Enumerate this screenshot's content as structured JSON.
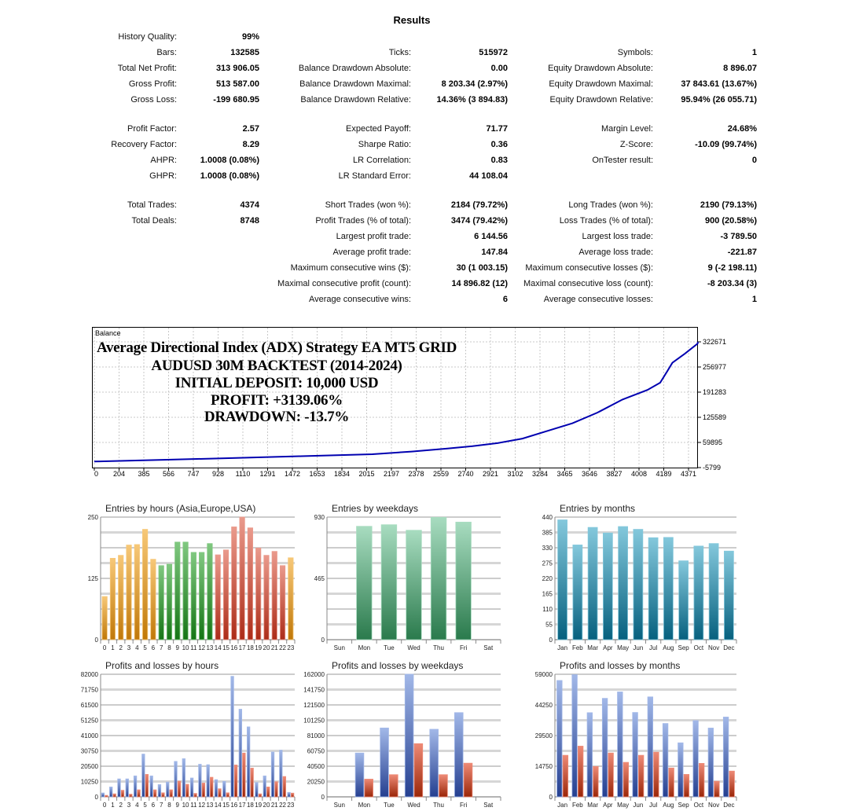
{
  "report": {
    "title": "Results",
    "sections": [
      [
        [
          [
            "History Quality:",
            "99%"
          ],
          null,
          null
        ],
        [
          [
            "Bars:",
            "132585"
          ],
          [
            "Ticks:",
            "515972"
          ],
          [
            "Symbols:",
            "1"
          ]
        ],
        [
          [
            "Total Net Profit:",
            "313 906.05"
          ],
          [
            "Balance Drawdown Absolute:",
            "0.00"
          ],
          [
            "Equity Drawdown Absolute:",
            "8 896.07"
          ]
        ],
        [
          [
            "Gross Profit:",
            "513 587.00"
          ],
          [
            "Balance Drawdown Maximal:",
            "8 203.34 (2.97%)"
          ],
          [
            "Equity Drawdown Maximal:",
            "37 843.61 (13.67%)"
          ]
        ],
        [
          [
            "Gross Loss:",
            "-199 680.95"
          ],
          [
            "Balance Drawdown Relative:",
            "14.36% (3 894.83)"
          ],
          [
            "Equity Drawdown Relative:",
            "95.94% (26 055.71)"
          ]
        ]
      ],
      [
        [
          [
            "Profit Factor:",
            "2.57"
          ],
          [
            "Expected Payoff:",
            "71.77"
          ],
          [
            "Margin Level:",
            "24.68%"
          ]
        ],
        [
          [
            "Recovery Factor:",
            "8.29"
          ],
          [
            "Sharpe Ratio:",
            "0.36"
          ],
          [
            "Z-Score:",
            "-10.09 (99.74%)"
          ]
        ],
        [
          [
            "AHPR:",
            "1.0008 (0.08%)"
          ],
          [
            "LR Correlation:",
            "0.83"
          ],
          [
            "OnTester result:",
            "0"
          ]
        ],
        [
          [
            "GHPR:",
            "1.0008 (0.08%)"
          ],
          [
            "LR Standard Error:",
            "44 108.04"
          ],
          null
        ]
      ],
      [
        [
          [
            "Total Trades:",
            "4374"
          ],
          [
            "Short Trades (won %):",
            "2184 (79.72%)"
          ],
          [
            "Long Trades (won %):",
            "2190 (79.13%)"
          ]
        ],
        [
          [
            "Total Deals:",
            "8748"
          ],
          [
            "Profit Trades (% of total):",
            "3474 (79.42%)"
          ],
          [
            "Loss Trades (% of total):",
            "900 (20.58%)"
          ]
        ],
        [
          null,
          [
            "Largest profit trade:",
            "6 144.56"
          ],
          [
            "Largest loss trade:",
            "-3 789.50"
          ]
        ],
        [
          null,
          [
            "Average profit trade:",
            "147.84"
          ],
          [
            "Average loss trade:",
            "-221.87"
          ]
        ],
        [
          null,
          [
            "Maximum consecutive wins ($):",
            "30 (1 003.15)"
          ],
          [
            "Maximum consecutive losses ($):",
            "9 (-2 198.11)"
          ]
        ],
        [
          null,
          [
            "Maximal consecutive profit (count):",
            "14 896.82 (12)"
          ],
          [
            "Maximal consecutive loss (count):",
            "-8 203.34 (3)"
          ]
        ],
        [
          null,
          [
            "Average consecutive wins:",
            "6"
          ],
          [
            "Average consecutive losses:",
            "1"
          ]
        ]
      ]
    ]
  },
  "overlay": {
    "line1": "Average Directional Index (ADX) Strategy EA MT5 GRID",
    "line2": "AUDUSD 30M BACKTEST (2014-2024)",
    "line3": "INITIAL DEPOSIT: 10,000 USD",
    "line4": "PROFIT: +3139.06%",
    "line5": "DRAWDOWN: -13.7%"
  },
  "palette": {
    "orange": [
      "#f7c878",
      "#c07808"
    ],
    "green": [
      "#80c880",
      "#157515"
    ],
    "red": [
      "#ea9a8c",
      "#ac2c18"
    ],
    "wgreen": [
      "#a8dcc0",
      "#2a7a4c"
    ],
    "teal": [
      "#84c8dc",
      "#06607e"
    ],
    "blue": [
      "#a2b8e8",
      "#243f90"
    ],
    "loss": [
      "#ee8a76",
      "#9a2608"
    ],
    "line": "#0000b0"
  },
  "chart_data": [
    {
      "type": "line",
      "title": "Balance",
      "x_ticks": [
        "0",
        "204",
        "385",
        "566",
        "747",
        "928",
        "1110",
        "1291",
        "1472",
        "1653",
        "1834",
        "2015",
        "2197",
        "2378",
        "2559",
        "2740",
        "2921",
        "3102",
        "3284",
        "3465",
        "3646",
        "3827",
        "4008",
        "4189",
        "4371"
      ],
      "y_ticks": [
        "322671",
        "256977",
        "191283",
        "125589",
        "59895",
        "-5799"
      ],
      "ylim": [
        -5799,
        322671
      ],
      "xlim": [
        0,
        4374
      ],
      "x": [
        0,
        500,
        1000,
        1500,
        2015,
        2300,
        2559,
        2740,
        2921,
        3102,
        3284,
        3465,
        3646,
        3827,
        4008,
        4100,
        4150,
        4189,
        4280,
        4371,
        4374
      ],
      "y": [
        10000,
        14500,
        19000,
        24000,
        29000,
        36000,
        44000,
        50000,
        58000,
        70000,
        90000,
        110000,
        138000,
        172000,
        197000,
        216000,
        245000,
        268000,
        292000,
        318000,
        322671
      ]
    },
    {
      "type": "bar",
      "title": "Entries by hours (Asia,Europe,USA)",
      "categories": [
        "0",
        "1",
        "2",
        "3",
        "4",
        "5",
        "6",
        "7",
        "8",
        "9",
        "10",
        "11",
        "12",
        "13",
        "14",
        "15",
        "16",
        "17",
        "18",
        "19",
        "20",
        "21",
        "22",
        "23"
      ],
      "ylim": [
        0,
        250
      ],
      "y_ticks": [
        0,
        125,
        250
      ],
      "series": [
        {
          "name": "Entries",
          "values": [
            88,
            166,
            172,
            193,
            194,
            225,
            164,
            151,
            154,
            199,
            199,
            178,
            178,
            196,
            173,
            183,
            230,
            250,
            228,
            187,
            172,
            180,
            151,
            167
          ],
          "colors": [
            "orange",
            "orange",
            "orange",
            "orange",
            "orange",
            "orange",
            "orange",
            "green",
            "green",
            "green",
            "green",
            "green",
            "green",
            "green",
            "red",
            "red",
            "red",
            "red",
            "red",
            "red",
            "red",
            "red",
            "red",
            "orange"
          ]
        }
      ]
    },
    {
      "type": "bar",
      "title": "Entries by weekdays",
      "categories": [
        "Sun",
        "Mon",
        "Tue",
        "Wed",
        "Thu",
        "Fri",
        "Sat"
      ],
      "ylim": [
        0,
        930
      ],
      "y_ticks": [
        0,
        465,
        930
      ],
      "series": [
        {
          "name": "Entries",
          "values": [
            0,
            860,
            872,
            830,
            928,
            892,
            0
          ],
          "colors": [
            "wgreen"
          ]
        }
      ]
    },
    {
      "type": "bar",
      "title": "Entries by months",
      "categories": [
        "Jan",
        "Feb",
        "Mar",
        "Apr",
        "May",
        "Jun",
        "Jul",
        "Aug",
        "Sep",
        "Oct",
        "Nov",
        "Dec"
      ],
      "ylim": [
        0,
        440
      ],
      "y_ticks": [
        0,
        55,
        110,
        165,
        220,
        275,
        330,
        385,
        440
      ],
      "series": [
        {
          "name": "Entries",
          "values": [
            430,
            340,
            403,
            383,
            406,
            396,
            366,
            367,
            283,
            336,
            345,
            318
          ],
          "colors": [
            "teal"
          ]
        }
      ]
    },
    {
      "type": "bar",
      "title": "Profits and losses by hours",
      "categories": [
        "0",
        "1",
        "2",
        "3",
        "4",
        "5",
        "6",
        "7",
        "8",
        "9",
        "10",
        "11",
        "12",
        "13",
        "14",
        "15",
        "16",
        "17",
        "18",
        "19",
        "20",
        "21",
        "22",
        "23"
      ],
      "ylim": [
        0,
        82000
      ],
      "y_ticks": [
        0,
        10250,
        20500,
        30750,
        41000,
        51250,
        61500,
        71750,
        82000
      ],
      "series": [
        {
          "name": "Profits",
          "values": [
            2600,
            6600,
            12000,
            12000,
            14000,
            28600,
            14000,
            8200,
            9900,
            23700,
            25500,
            12600,
            21800,
            21500,
            11500,
            10300,
            80600,
            58600,
            46800,
            9600,
            14000,
            30000,
            31200,
            3000
          ],
          "colors": [
            "blue"
          ]
        },
        {
          "name": "Losses",
          "values": [
            1000,
            2000,
            4400,
            1800,
            4700,
            15000,
            4700,
            2700,
            4700,
            10500,
            8400,
            2300,
            9200,
            13100,
            5400,
            2700,
            21300,
            29300,
            19200,
            2000,
            6600,
            10100,
            13600,
            2500
          ],
          "colors": [
            "loss"
          ]
        }
      ]
    },
    {
      "type": "bar",
      "title": "Profits and losses by weekdays",
      "categories": [
        "Sun",
        "Mon",
        "Tue",
        "Wed",
        "Thu",
        "Fri",
        "Sat"
      ],
      "ylim": [
        0,
        162000
      ],
      "y_ticks": [
        0,
        20250,
        40500,
        60750,
        81000,
        101250,
        121500,
        141750,
        162000
      ],
      "series": [
        {
          "name": "Profits",
          "values": [
            0,
            57900,
            91000,
            162000,
            89300,
            111300,
            0
          ],
          "colors": [
            "blue"
          ]
        },
        {
          "name": "Losses",
          "values": [
            0,
            23400,
            29300,
            70300,
            29300,
            44500,
            0
          ],
          "colors": [
            "loss"
          ]
        }
      ]
    },
    {
      "type": "bar",
      "title": "Profits and losses by months",
      "categories": [
        "Jan",
        "Feb",
        "Mar",
        "Apr",
        "May",
        "Jun",
        "Jul",
        "Aug",
        "Sep",
        "Oct",
        "Nov",
        "Dec"
      ],
      "ylim": [
        0,
        59000
      ],
      "y_ticks": [
        0,
        14750,
        29500,
        44250,
        59000
      ],
      "series": [
        {
          "name": "Profits",
          "values": [
            56000,
            58800,
            40500,
            47400,
            50500,
            40600,
            48100,
            35300,
            26000,
            36700,
            33100,
            38400
          ],
          "colors": [
            "blue"
          ]
        },
        {
          "name": "Losses",
          "values": [
            20000,
            24400,
            14600,
            21100,
            16600,
            20000,
            21500,
            13900,
            10800,
            16100,
            7500,
            12400
          ],
          "colors": [
            "loss"
          ]
        }
      ]
    }
  ]
}
